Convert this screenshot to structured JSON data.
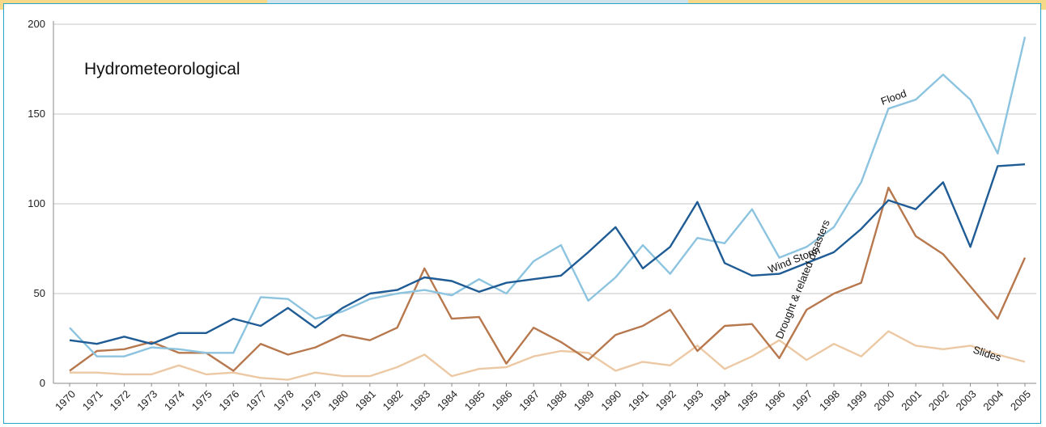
{
  "chart_data": {
    "type": "line",
    "title": "Hydrometeorological",
    "xlabel": "",
    "ylabel": "",
    "ylim": [
      0,
      200
    ],
    "yticks": [
      "0",
      "50",
      "100",
      "150",
      "200"
    ],
    "grid": true,
    "categories": [
      "1970",
      "1971",
      "1972",
      "1973",
      "1974",
      "1975",
      "1976",
      "1977",
      "1978",
      "1979",
      "1980",
      "1981",
      "1982",
      "1983",
      "1984",
      "1985",
      "1986",
      "1987",
      "1988",
      "1989",
      "1990",
      "1991",
      "1992",
      "1993",
      "1994",
      "1995",
      "1996",
      "1997",
      "1998",
      "1999",
      "2000",
      "2001",
      "2002",
      "2003",
      "2004",
      "2005"
    ],
    "series": [
      {
        "name": "Flood",
        "color": "#8cc4e0",
        "values": [
          31,
          15,
          15,
          20,
          19,
          17,
          17,
          48,
          47,
          36,
          40,
          47,
          50,
          52,
          49,
          58,
          50,
          68,
          77,
          46,
          59,
          77,
          61,
          81,
          78,
          97,
          70,
          76,
          87,
          112,
          153,
          158,
          172,
          158,
          128,
          193
        ]
      },
      {
        "name": "Wind Storm",
        "color": "#1f5b94",
        "values": [
          24,
          22,
          26,
          22,
          28,
          28,
          36,
          32,
          42,
          31,
          42,
          50,
          52,
          59,
          57,
          51,
          56,
          58,
          60,
          73,
          87,
          64,
          76,
          101,
          67,
          60,
          61,
          67,
          73,
          86,
          102,
          97,
          112,
          76,
          121,
          122
        ]
      },
      {
        "name": "Drought & related disasters",
        "color": "#b7784e",
        "values": [
          7,
          18,
          19,
          23,
          17,
          17,
          7,
          22,
          16,
          20,
          27,
          24,
          31,
          64,
          36,
          37,
          11,
          31,
          23,
          13,
          27,
          32,
          41,
          18,
          32,
          33,
          14,
          41,
          50,
          56,
          109,
          82,
          72,
          54,
          36,
          70
        ]
      },
      {
        "name": "Slides",
        "color": "#ecc9a4",
        "values": [
          6,
          6,
          5,
          5,
          10,
          5,
          6,
          3,
          2,
          6,
          4,
          4,
          9,
          16,
          4,
          8,
          9,
          15,
          18,
          17,
          7,
          12,
          10,
          21,
          8,
          15,
          24,
          13,
          22,
          15,
          29,
          21,
          19,
          21,
          16,
          12
        ]
      }
    ]
  }
}
